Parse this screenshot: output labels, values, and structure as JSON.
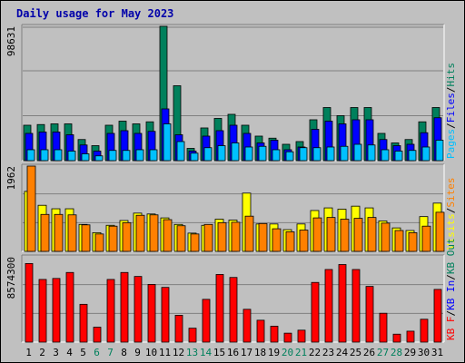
{
  "title": "Daily usage for May 2023",
  "colors": {
    "hits": "#00805c",
    "files": "#0000ff",
    "pages": "#00c0ff",
    "visits": "#ffff00",
    "sites": "#ff8000",
    "kbin": "#ff0000",
    "kbout": "#ff0000",
    "weekend": "#00805c",
    "weekday": "#000000",
    "title": "#0000aa"
  },
  "chart_data": [
    {
      "type": "bar",
      "name": "hits-files-pages",
      "ymax_label": "98631",
      "ylim": [
        0,
        98631
      ],
      "legend": [
        "Pages",
        "/",
        "Files",
        "/",
        "Hits"
      ],
      "categories": [
        "1",
        "2",
        "3",
        "4",
        "5",
        "6",
        "7",
        "8",
        "9",
        "10",
        "11",
        "12",
        "13",
        "14",
        "15",
        "16",
        "17",
        "18",
        "19",
        "20",
        "21",
        "22",
        "23",
        "24",
        "25",
        "26",
        "27",
        "28",
        "29",
        "30",
        "31"
      ],
      "weekend_days": [
        6,
        7,
        13,
        14,
        20,
        21,
        27,
        28
      ],
      "series": [
        {
          "name": "Hits",
          "values": [
            26000,
            26500,
            27000,
            27000,
            15500,
            11000,
            26000,
            29000,
            27000,
            28500,
            98631,
            55000,
            9000,
            24000,
            31000,
            34000,
            26000,
            18000,
            16500,
            12000,
            14000,
            30000,
            39000,
            33000,
            39000,
            39000,
            20000,
            13000,
            15500,
            28500,
            39000
          ]
        },
        {
          "name": "Files",
          "values": [
            20000,
            21000,
            21000,
            19000,
            11500,
            7000,
            20000,
            22000,
            20000,
            21500,
            38000,
            19000,
            7000,
            18000,
            22000,
            26000,
            20000,
            13000,
            15000,
            8000,
            10000,
            23000,
            29000,
            27000,
            30000,
            30000,
            15500,
            11000,
            12000,
            20500,
            31500
          ]
        },
        {
          "name": "Pages",
          "values": [
            8000,
            8000,
            8000,
            7000,
            5000,
            3500,
            7500,
            7500,
            8000,
            8000,
            27000,
            14000,
            5500,
            9500,
            11000,
            13000,
            10000,
            10500,
            8000,
            6500,
            9500,
            9500,
            10000,
            10500,
            12000,
            11500,
            8000,
            7000,
            7500,
            10000,
            15000
          ]
        }
      ]
    },
    {
      "type": "bar",
      "name": "visits-sites",
      "ymax_label": "1962",
      "ylim": [
        0,
        1962
      ],
      "legend": [
        "Visits",
        "/",
        "Sites"
      ],
      "series": [
        {
          "name": "Visits",
          "values": [
            1380,
            1060,
            980,
            980,
            620,
            430,
            600,
            710,
            880,
            860,
            770,
            620,
            420,
            600,
            740,
            720,
            1340,
            630,
            630,
            500,
            630,
            940,
            1000,
            970,
            1040,
            1000,
            700,
            540,
            480,
            800,
            1110
          ]
        },
        {
          "name": "Sites",
          "values": [
            1962,
            850,
            850,
            840,
            610,
            400,
            580,
            660,
            830,
            840,
            730,
            590,
            400,
            620,
            660,
            670,
            810,
            640,
            520,
            450,
            490,
            770,
            780,
            740,
            760,
            780,
            650,
            480,
            430,
            580,
            900
          ]
        }
      ]
    },
    {
      "type": "bar",
      "name": "kb",
      "ymax_label": "8574300",
      "ylim": [
        0,
        8574300
      ],
      "legend": [
        "KB F",
        "/",
        "KB In",
        "/",
        "KB Out"
      ],
      "series": [
        {
          "name": "KB F",
          "values": [
            7900000,
            6300000,
            6400000,
            7000000,
            3800000,
            1500000,
            6300000,
            7000000,
            6600000,
            5800000,
            5500000,
            2700000,
            1400000,
            4300000,
            6800000,
            6500000,
            3300000,
            2200000,
            1600000,
            900000,
            1200000,
            6000000,
            7300000,
            7800000,
            7300000,
            5600000,
            2900000,
            800000,
            1100000,
            2300000,
            5300000
          ]
        }
      ]
    }
  ],
  "xlabels": [
    "1",
    "2",
    "3",
    "4",
    "5",
    "6",
    "7",
    "8",
    "9",
    "10",
    "11",
    "12",
    "13",
    "14",
    "15",
    "16",
    "17",
    "18",
    "19",
    "20",
    "21",
    "22",
    "23",
    "24",
    "25",
    "26",
    "27",
    "28",
    "29",
    "30",
    "31"
  ]
}
